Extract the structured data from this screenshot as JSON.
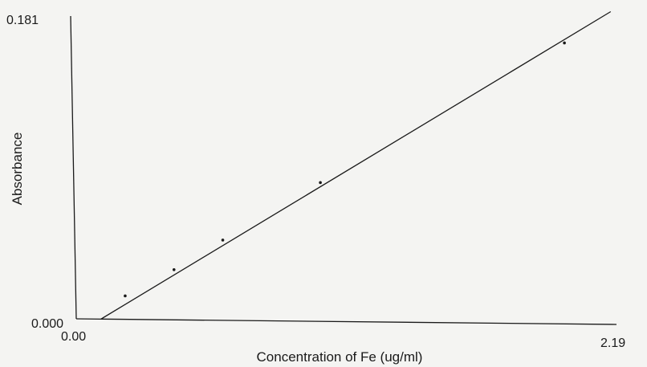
{
  "chart_data": {
    "type": "scatter",
    "title": "",
    "xlabel": "Concentration of Fe (ug/ml)",
    "ylabel": "Absorbance",
    "xlim": [
      0.0,
      2.19
    ],
    "ylim": [
      0.0,
      0.181
    ],
    "x_tick_labels": [
      "0.00",
      "2.19"
    ],
    "y_tick_labels": [
      "0.000",
      "0.181"
    ],
    "series": [
      {
        "points": [
          {
            "x": 0.2,
            "y": 0.014
          },
          {
            "x": 0.4,
            "y": 0.03
          },
          {
            "x": 0.6,
            "y": 0.048
          },
          {
            "x": 1.0,
            "y": 0.083
          },
          {
            "x": 2.0,
            "y": 0.168
          }
        ]
      }
    ],
    "fit_line": {
      "x": [
        0.1,
        2.19
      ],
      "y": [
        0.0,
        0.187
      ]
    },
    "grid": false,
    "legend": "none"
  },
  "colors": {
    "ink": "#1a1a1a",
    "background": "#f4f4f2"
  }
}
